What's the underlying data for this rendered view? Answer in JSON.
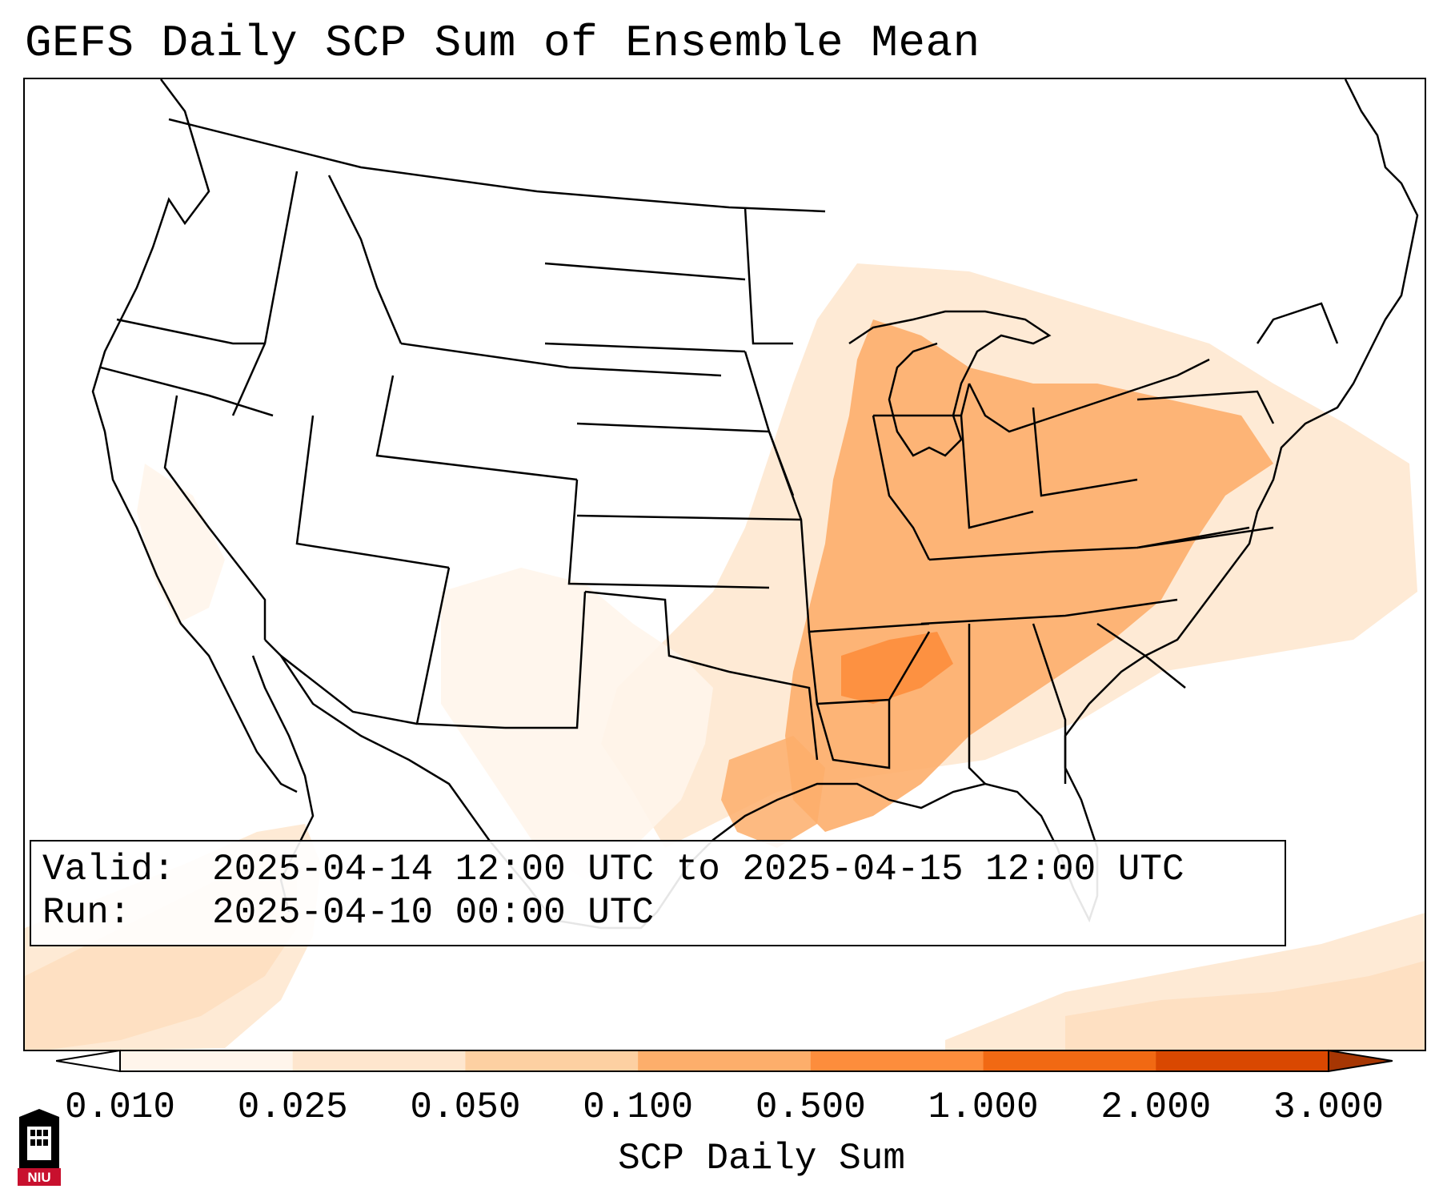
{
  "title": "GEFS Daily SCP Sum of Ensemble Mean",
  "info": {
    "valid_label": "Valid:",
    "valid_value": "2025-04-14 12:00 UTC to 2025-04-15 12:00 UTC",
    "run_label": "Run:",
    "run_value": "2025-04-10 00:00 UTC"
  },
  "colorbar": {
    "label": "SCP Daily Sum",
    "ticks": [
      "0.010",
      "0.025",
      "0.050",
      "0.100",
      "0.500",
      "1.000",
      "2.000",
      "3.000"
    ],
    "colors": [
      "#fff5eb",
      "#fee6ce",
      "#fdd0a2",
      "#fdae6b",
      "#fd8d3c",
      "#f16913",
      "#d94801",
      "#a63603"
    ],
    "extend": "both"
  },
  "logo": {
    "text": "NIU",
    "color": "#c8102e"
  },
  "shading_colors": {
    "very_light": "#fff5eb",
    "light": "#fee6ce",
    "medium_light": "#fdd0a2",
    "medium": "#fdae6b",
    "strong": "#fd8d3c"
  }
}
